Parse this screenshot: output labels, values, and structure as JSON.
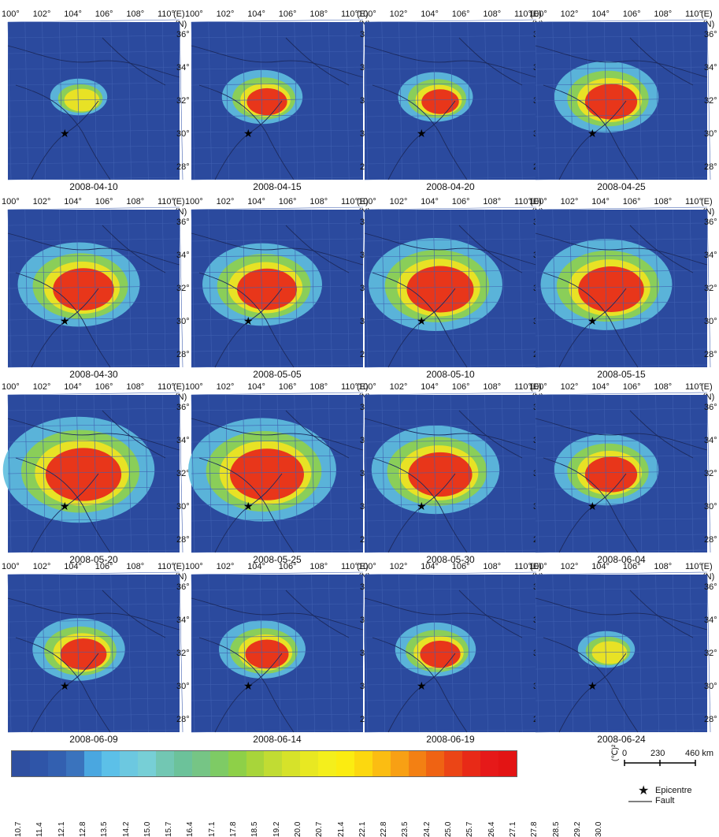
{
  "lon_ticks": [
    "100°",
    "102°",
    "104°",
    "106°",
    "108°",
    "110°"
  ],
  "lon_axis_label": "(E)",
  "lat_axis_label": "(N)",
  "lat_ticks": [
    "36°",
    "34°",
    "32°",
    "30°",
    "28°"
  ],
  "panels": [
    {
      "date": "2008-04-10",
      "level": 0.15
    },
    {
      "date": "2008-04-15",
      "level": 0.35
    },
    {
      "date": "2008-04-20",
      "level": 0.3
    },
    {
      "date": "2008-04-25",
      "level": 0.55
    },
    {
      "date": "2008-04-30",
      "level": 0.7
    },
    {
      "date": "2008-05-05",
      "level": 0.68
    },
    {
      "date": "2008-05-10",
      "level": 0.8
    },
    {
      "date": "2008-05-15",
      "level": 0.78
    },
    {
      "date": "2008-05-20",
      "level": 0.95
    },
    {
      "date": "2008-05-25",
      "level": 0.92
    },
    {
      "date": "2008-05-30",
      "level": 0.75
    },
    {
      "date": "2008-06-04",
      "level": 0.55
    },
    {
      "date": "2008-06-09",
      "level": 0.45
    },
    {
      "date": "2008-06-14",
      "level": 0.4
    },
    {
      "date": "2008-06-19",
      "level": 0.35
    },
    {
      "date": "2008-06-24",
      "level": 0.15
    }
  ],
  "colorbar": {
    "unit": "(℃)²",
    "ticks": [
      "10.7",
      "11.4",
      "12.1",
      "12.8",
      "13.5",
      "14.2",
      "15.0",
      "15.7",
      "16.4",
      "17.1",
      "17.8",
      "18.5",
      "19.2",
      "20.0",
      "20.7",
      "21.4",
      "22.1",
      "22.8",
      "23.5",
      "24.2",
      "25.0",
      "25.7",
      "26.4",
      "27.1",
      "27.8",
      "28.5",
      "29.2",
      "30.0"
    ],
    "colors": [
      "#2f4fa0",
      "#2f55a8",
      "#3360b0",
      "#3a73bd",
      "#4aa7e0",
      "#5cc0e8",
      "#6cc8e0",
      "#77cfd6",
      "#72c7b3",
      "#6cc29a",
      "#76c585",
      "#7ecb65",
      "#8ed048",
      "#a8d53a",
      "#c1dc33",
      "#d6e22a",
      "#e8e822",
      "#f4ef1c",
      "#fbec11",
      "#fcd80f",
      "#fbbd12",
      "#f8a014",
      "#f38013",
      "#ef6313",
      "#eb4516",
      "#e82a17",
      "#e61919",
      "#e31414"
    ]
  },
  "scale_bar": {
    "labels": [
      "0",
      "230",
      "460 km"
    ]
  },
  "legend": {
    "epicentre_label": "Epicentre",
    "fault_label": "Fault"
  }
}
